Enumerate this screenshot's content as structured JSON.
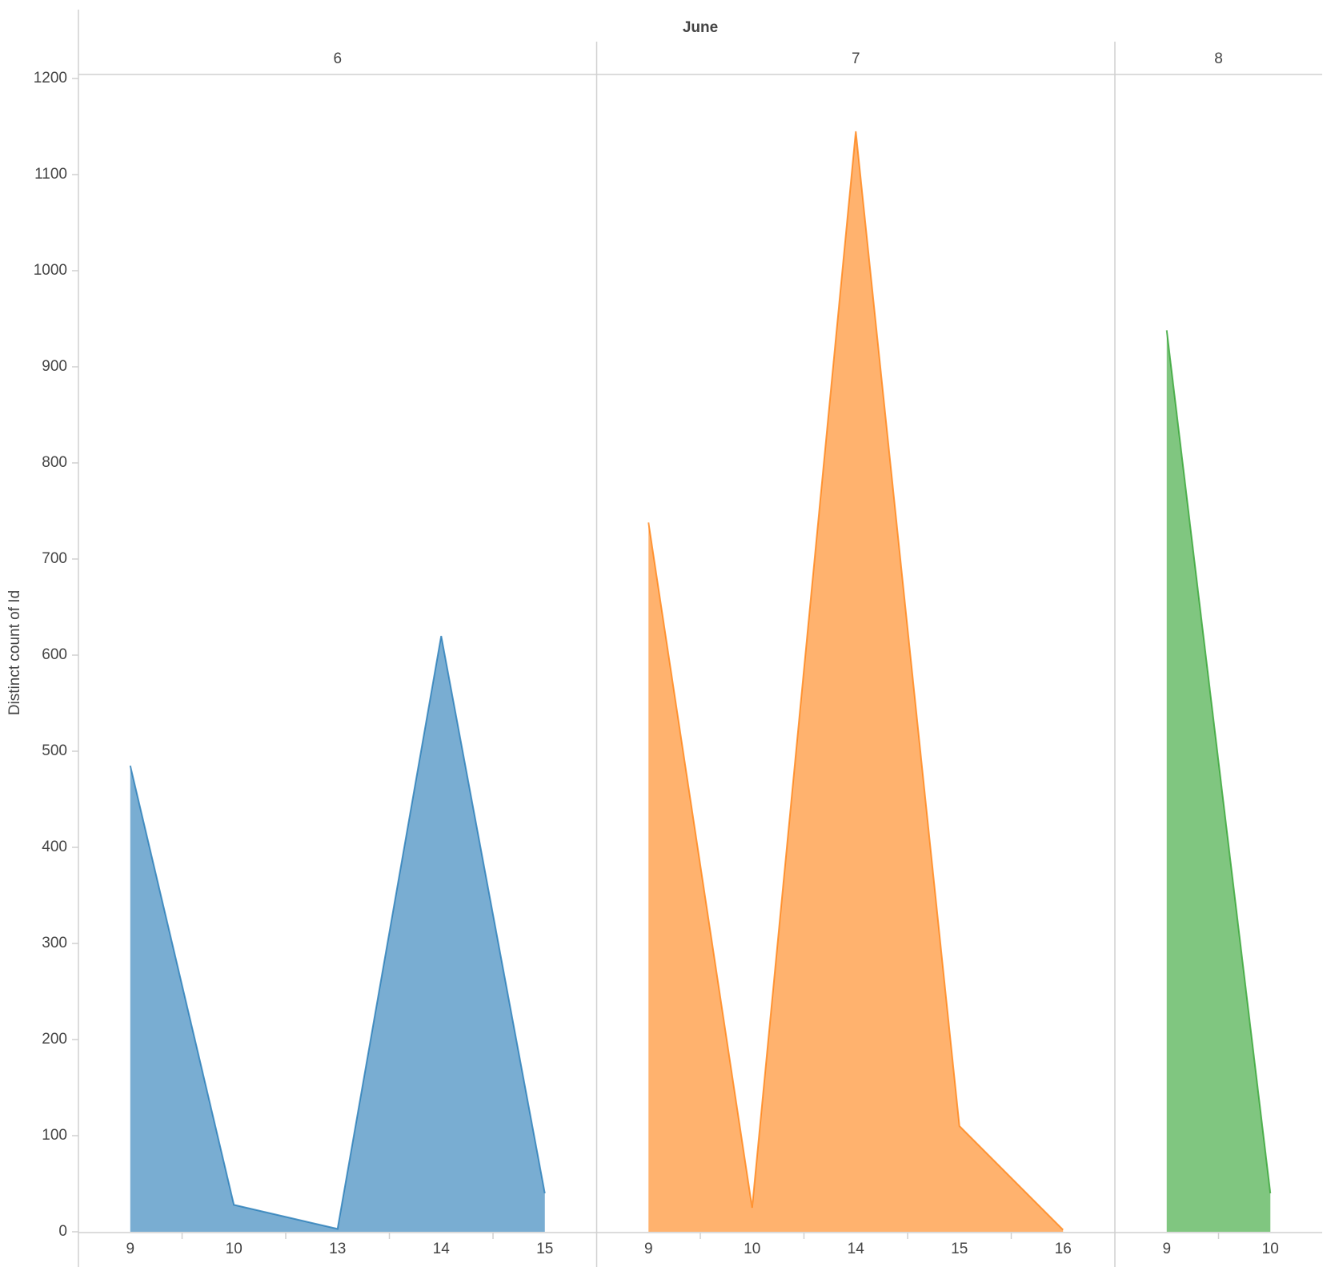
{
  "chart_data": {
    "type": "area",
    "title": "June",
    "y_label": "Distinct count of Id",
    "ylim": [
      0,
      1200
    ],
    "yticks": [
      0,
      100,
      200,
      300,
      400,
      500,
      600,
      700,
      800,
      900,
      1000,
      1100,
      1200
    ],
    "series": [
      {
        "name": "6",
        "color": "#1f77b4",
        "categories": [
          "9",
          "10",
          "13",
          "14",
          "15"
        ],
        "values": [
          485,
          28,
          3,
          620,
          40
        ]
      },
      {
        "name": "7",
        "color": "#ff7f0e",
        "categories": [
          "9",
          "10",
          "14",
          "15",
          "16"
        ],
        "values": [
          738,
          25,
          1145,
          110,
          2
        ]
      },
      {
        "name": "8",
        "color": "#2ca02c",
        "categories": [
          "9",
          "10"
        ],
        "values": [
          938,
          40
        ]
      }
    ]
  }
}
